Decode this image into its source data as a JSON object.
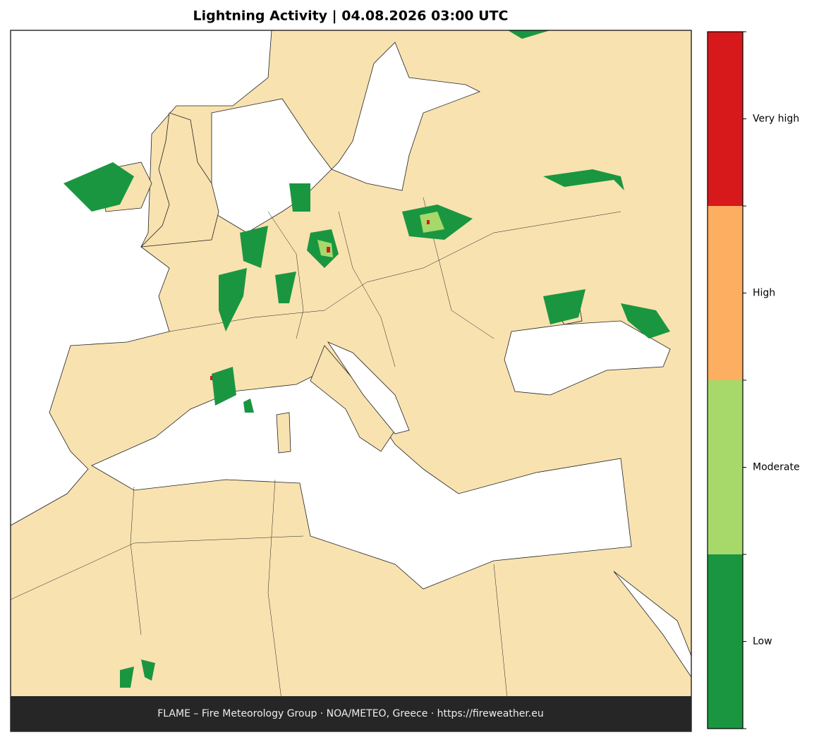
{
  "title": "Lightning Activity  |  04.08.2026 03:00 UTC",
  "legend": {
    "levels": [
      {
        "label": "Very high",
        "color": "#d7191c"
      },
      {
        "label": "High",
        "color": "#fdae61"
      },
      {
        "label": "Moderate",
        "color": "#a6d96a"
      },
      {
        "label": "Low",
        "color": "#1a9641"
      }
    ]
  },
  "footer": "FLAME – Fire Meteorology Group · NOA/METEO, Greece · https://fireweather.eu"
}
